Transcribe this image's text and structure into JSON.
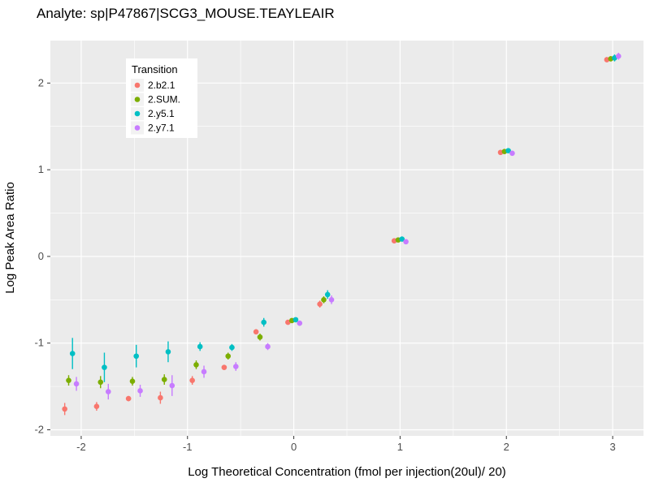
{
  "chart_data": {
    "type": "scatter",
    "title": "Analyte: sp|P47867|SCG3_MOUSE.TEAYLEAIR",
    "xlabel": "Log Theoretical Concentration (fmol per injection(20ul)/ 20)",
    "ylabel": "Log Peak Area Ratio",
    "xlim": [
      -2.29,
      3.29
    ],
    "ylim": [
      -2.07,
      2.49
    ],
    "x_ticks": [
      -2,
      -1,
      0,
      1,
      2,
      3
    ],
    "y_ticks": [
      -2,
      -1,
      0,
      1,
      2
    ],
    "grid": "major-and-minor-white-on-grey",
    "panel_color": "#ebebeb",
    "grid_color": "#ffffff",
    "legend": {
      "title": "Transition",
      "position": "top-left-inside"
    },
    "x": [
      -2.1,
      -1.8,
      -1.5,
      -1.2,
      -0.9,
      -0.6,
      -0.3,
      0,
      0.3,
      1,
      2,
      3
    ],
    "series": [
      {
        "name": "2.b2.1",
        "color": "#F8766D",
        "y": [
          -1.76,
          -1.73,
          -1.64,
          -1.63,
          -1.43,
          -1.28,
          -0.87,
          -0.76,
          -0.55,
          0.18,
          1.2,
          2.27
        ],
        "err": [
          0.07,
          0.05,
          0.03,
          0.07,
          0.05,
          0.03,
          0.03,
          0.02,
          0.04,
          0.02,
          0.02,
          0.03
        ]
      },
      {
        "name": "2.SUM.",
        "color": "#7CAE00",
        "y": [
          -1.43,
          -1.45,
          -1.44,
          -1.42,
          -1.25,
          -1.15,
          -0.93,
          -0.74,
          -0.5,
          0.19,
          1.21,
          2.28
        ],
        "err": [
          0.06,
          0.07,
          0.05,
          0.06,
          0.05,
          0.04,
          0.04,
          0.02,
          0.04,
          0.02,
          0.02,
          0.03
        ]
      },
      {
        "name": "2.y5.1",
        "color": "#00BFC4",
        "y": [
          -1.12,
          -1.28,
          -1.15,
          -1.1,
          -1.04,
          -1.05,
          -0.76,
          -0.73,
          -0.44,
          0.2,
          1.22,
          2.29
        ],
        "err": [
          0.18,
          0.17,
          0.13,
          0.12,
          0.05,
          0.04,
          0.05,
          0.02,
          0.05,
          0.02,
          0.02,
          0.04
        ]
      },
      {
        "name": "2.y7.1",
        "color": "#C77CFF",
        "y": [
          -1.47,
          -1.56,
          -1.55,
          -1.49,
          -1.33,
          -1.27,
          -1.04,
          -0.77,
          -0.5,
          0.17,
          1.19,
          2.31
        ],
        "err": [
          0.08,
          0.09,
          0.07,
          0.12,
          0.07,
          0.05,
          0.04,
          0.03,
          0.05,
          0.02,
          0.02,
          0.04
        ]
      }
    ]
  }
}
